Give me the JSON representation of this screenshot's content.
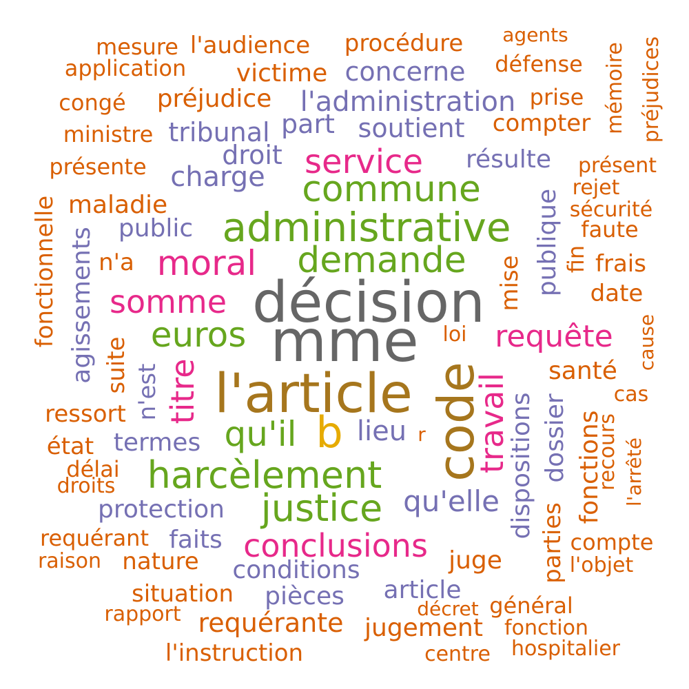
{
  "palette": {
    "dark_gray": "#666666",
    "gold_brown": "#A6761D",
    "green": "#66A61E",
    "magenta": "#E7298A",
    "purple": "#7570B3",
    "orange": "#D95F02",
    "yellow": "#E6AB02"
  },
  "words": [
    "mme",
    "décision",
    "l'article",
    "code",
    "administrative",
    "demande",
    "commune",
    "harcèlement",
    "justice",
    "moral",
    "service",
    "somme",
    "qu'il",
    "euros",
    "b",
    "requête",
    "travail",
    "titre",
    "conclusions",
    "lieu",
    "qu'elle",
    "charge",
    "l'administration",
    "concerne",
    "soutient",
    "part",
    "tribunal",
    "droit",
    "résulte",
    "publique",
    "public",
    "termes",
    "protection",
    "conditions",
    "pièces",
    "article",
    "faits",
    "n'est",
    "dispositions",
    "dossier",
    "agissements",
    "procédure",
    "l'audience",
    "mesure",
    "application",
    "victime",
    "préjudice",
    "congé",
    "ministre",
    "présente",
    "maladie",
    "n'a",
    "agents",
    "défense",
    "prise",
    "compter",
    "mémoire",
    "préjudices",
    "présent",
    "rejet",
    "sécurité",
    "faute",
    "fin",
    "frais",
    "date",
    "mise",
    "cause",
    "loi",
    "santé",
    "cas",
    "fonctions",
    "recours",
    "l'arrêté",
    "parties",
    "compte",
    "l'objet",
    "juge",
    "général",
    "décret",
    "fonction",
    "hospitalier",
    "centre",
    "jugement",
    "requérante",
    "l'instruction",
    "rapport",
    "situation",
    "nature",
    "raison",
    "requérant",
    "droits",
    "délai",
    "état",
    "ressort",
    "suite",
    "fonctionnelle",
    "r"
  ]
}
